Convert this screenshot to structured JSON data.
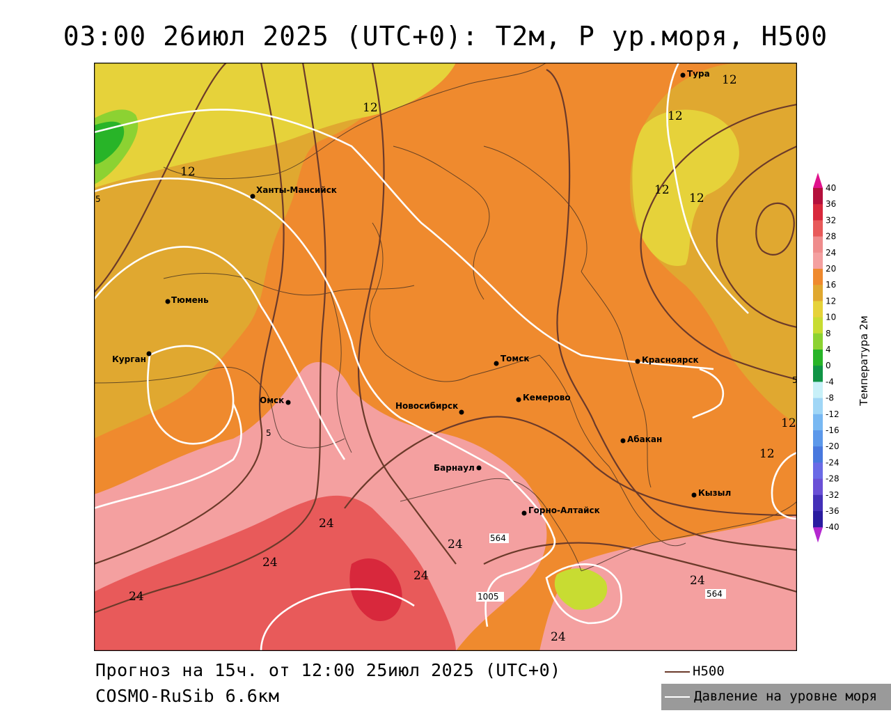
{
  "title": "03:00 26июл 2025 (UTC+0): T2м, P ур.моря, H500",
  "footer": {
    "forecast": "Прогноз на 15ч. от 12:00 25июл 2025 (UTC+0)",
    "model": "COSMO-RuSib 6.6км"
  },
  "line_legend": {
    "h500": "H500",
    "pressure": "Давление на уровне моря",
    "h500_color": "#6b3a2a",
    "pressure_color": "#ffffff"
  },
  "colorbar": {
    "title": "Температура 2м",
    "ticks": [
      "40",
      "36",
      "32",
      "28",
      "24",
      "20",
      "16",
      "12",
      "10",
      "8",
      "4",
      "0",
      "-4",
      "-8",
      "-12",
      "-16",
      "-20",
      "-24",
      "-28",
      "-32",
      "-36",
      "-40"
    ],
    "colors": [
      "#b4103c",
      "#d8283c",
      "#e85a5a",
      "#ef8c8c",
      "#f4a0a0",
      "#ef8a2e",
      "#e0a830",
      "#e6d23a",
      "#c8dc32",
      "#8cd232",
      "#28b428",
      "#109446",
      "#c8f0f8",
      "#a0d6f6",
      "#78b8f2",
      "#5c98ea",
      "#4878de",
      "#6a6ae6",
      "#6a50d6",
      "#4430b8",
      "#2a1ca0"
    ],
    "top_color": "#e0128c",
    "bottom_color": "#b428d0"
  },
  "cities": [
    {
      "name": "Тура"
    },
    {
      "name": "Ханты-Мансийск"
    },
    {
      "name": "Тюмень"
    },
    {
      "name": "Курган"
    },
    {
      "name": "Омск"
    },
    {
      "name": "Новосибирск"
    },
    {
      "name": "Томск"
    },
    {
      "name": "Кемерово"
    },
    {
      "name": "Красноярск"
    },
    {
      "name": "Абакан"
    },
    {
      "name": "Барнаул"
    },
    {
      "name": "Горно-Алтайск"
    },
    {
      "name": "Кызыл"
    }
  ],
  "contour_labels": {
    "t12": "12",
    "t24": "24",
    "h564": "564",
    "p1005": "1005",
    "edge_left": "5",
    "edge_right": "5",
    "edge_mid": "5"
  }
}
